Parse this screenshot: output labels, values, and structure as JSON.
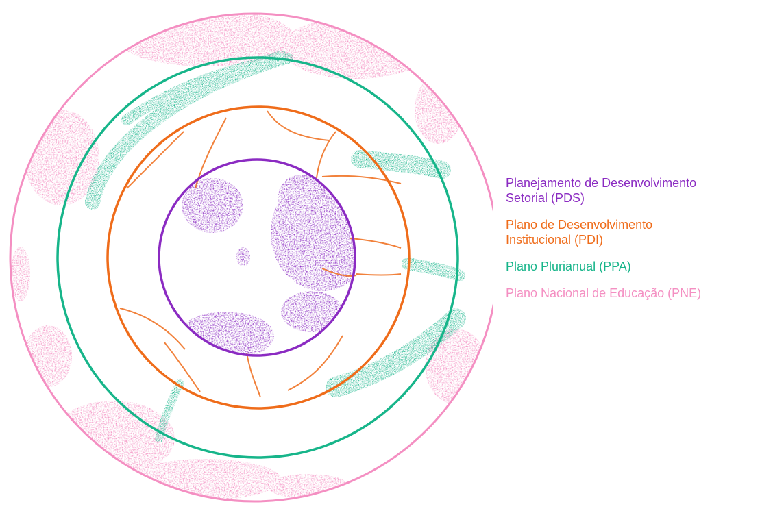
{
  "colors": {
    "pds": "#8b2bc2",
    "pdi": "#ef6c1a",
    "ppa": "#17b58a",
    "pne": "#f48fc2"
  },
  "legend": [
    {
      "key": "pds",
      "label": "Planejamento de Desenvolvimento\nSetorial (PDS)",
      "color": "#8b2bc2"
    },
    {
      "key": "pdi",
      "label": "Plano de Desenvolvimento\nInstitucional (PDI)",
      "color": "#ef6c1a"
    },
    {
      "key": "ppa",
      "label": "Plano Plurianual (PPA)",
      "color": "#17b58a"
    },
    {
      "key": "pne",
      "label": "Plano Nacional de Educação (PNE)",
      "color": "#f48fc2"
    }
  ]
}
